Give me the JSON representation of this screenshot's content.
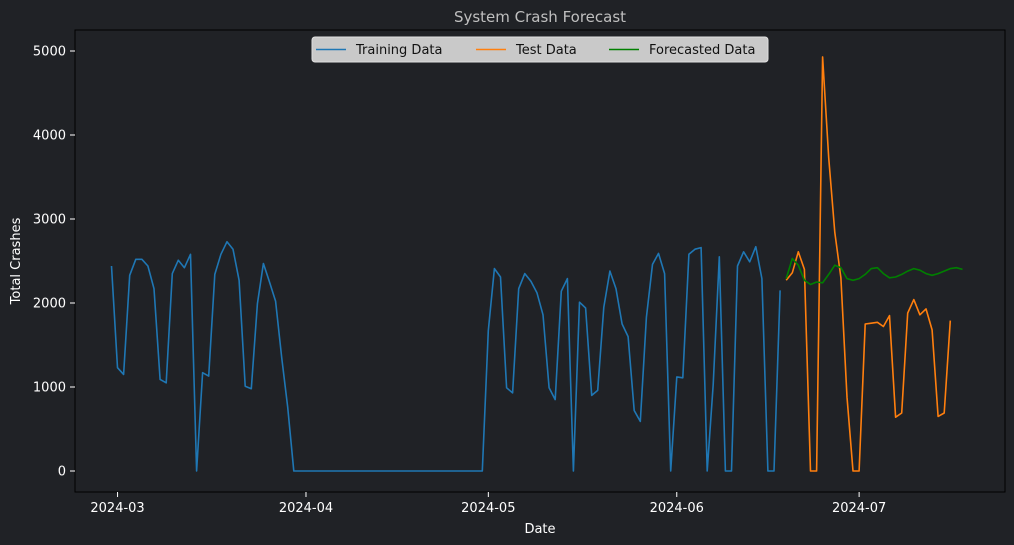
{
  "chart_data": {
    "type": "line",
    "title": "System Crash Forecast",
    "xlabel": "Date",
    "ylabel": "Total Crashes",
    "xlim": [
      "2024-02-23",
      "2024-07-25"
    ],
    "ylim": [
      -250,
      5250
    ],
    "x_ticks": [
      "2024-03",
      "2024-04",
      "2024-05",
      "2024-06",
      "2024-07"
    ],
    "y_ticks": [
      0,
      1000,
      2000,
      3000,
      4000,
      5000
    ],
    "grid": false,
    "legend_position": "top-center",
    "colors": {
      "background": "#202226",
      "axes": "#000000",
      "legend_bg": "#c9c9c9"
    },
    "series": [
      {
        "name": "Training Data",
        "color": "#1f77b4",
        "points": [
          [
            "2024-02-29",
            2440
          ],
          [
            "2024-03-01",
            1230
          ],
          [
            "2024-03-02",
            1150
          ],
          [
            "2024-03-03",
            2330
          ],
          [
            "2024-03-04",
            2520
          ],
          [
            "2024-03-05",
            2520
          ],
          [
            "2024-03-06",
            2440
          ],
          [
            "2024-03-07",
            2170
          ],
          [
            "2024-03-08",
            1090
          ],
          [
            "2024-03-09",
            1050
          ],
          [
            "2024-03-10",
            2350
          ],
          [
            "2024-03-11",
            2510
          ],
          [
            "2024-03-12",
            2420
          ],
          [
            "2024-03-13",
            2580
          ],
          [
            "2024-03-14",
            0
          ],
          [
            "2024-03-15",
            1170
          ],
          [
            "2024-03-16",
            1130
          ],
          [
            "2024-03-17",
            2340
          ],
          [
            "2024-03-18",
            2580
          ],
          [
            "2024-03-19",
            2730
          ],
          [
            "2024-03-20",
            2640
          ],
          [
            "2024-03-21",
            2270
          ],
          [
            "2024-03-22",
            1010
          ],
          [
            "2024-03-23",
            980
          ],
          [
            "2024-03-24",
            1990
          ],
          [
            "2024-03-25",
            2470
          ],
          [
            "2024-03-26",
            2250
          ],
          [
            "2024-03-27",
            2020
          ],
          [
            "2024-03-28",
            1350
          ],
          [
            "2024-03-29",
            760
          ],
          [
            "2024-03-30",
            0
          ],
          [
            "2024-03-31",
            0
          ],
          [
            "2024-04-29",
            0
          ],
          [
            "2024-04-30",
            0
          ],
          [
            "2024-05-01",
            1670
          ],
          [
            "2024-05-02",
            2410
          ],
          [
            "2024-05-03",
            2310
          ],
          [
            "2024-05-04",
            990
          ],
          [
            "2024-05-05",
            930
          ],
          [
            "2024-05-06",
            2170
          ],
          [
            "2024-05-07",
            2350
          ],
          [
            "2024-05-08",
            2260
          ],
          [
            "2024-05-09",
            2120
          ],
          [
            "2024-05-10",
            1860
          ],
          [
            "2024-05-11",
            990
          ],
          [
            "2024-05-12",
            850
          ],
          [
            "2024-05-13",
            2140
          ],
          [
            "2024-05-14",
            2290
          ],
          [
            "2024-05-15",
            0
          ],
          [
            "2024-05-16",
            2010
          ],
          [
            "2024-05-17",
            1940
          ],
          [
            "2024-05-18",
            900
          ],
          [
            "2024-05-19",
            960
          ],
          [
            "2024-05-20",
            1950
          ],
          [
            "2024-05-21",
            2380
          ],
          [
            "2024-05-22",
            2170
          ],
          [
            "2024-05-23",
            1750
          ],
          [
            "2024-05-24",
            1600
          ],
          [
            "2024-05-25",
            720
          ],
          [
            "2024-05-26",
            590
          ],
          [
            "2024-05-27",
            1830
          ],
          [
            "2024-05-28",
            2460
          ],
          [
            "2024-05-29",
            2590
          ],
          [
            "2024-05-30",
            2350
          ],
          [
            "2024-05-31",
            0
          ],
          [
            "2024-06-01",
            1120
          ],
          [
            "2024-06-02",
            1110
          ],
          [
            "2024-06-03",
            2580
          ],
          [
            "2024-06-04",
            2640
          ],
          [
            "2024-06-05",
            2660
          ],
          [
            "2024-06-06",
            0
          ],
          [
            "2024-06-07",
            1030
          ],
          [
            "2024-06-08",
            2550
          ],
          [
            "2024-06-09",
            0
          ],
          [
            "2024-06-10",
            0
          ],
          [
            "2024-06-11",
            2440
          ],
          [
            "2024-06-12",
            2610
          ],
          [
            "2024-06-13",
            2490
          ],
          [
            "2024-06-14",
            2670
          ],
          [
            "2024-06-15",
            2290
          ],
          [
            "2024-06-16",
            0
          ],
          [
            "2024-06-17",
            0
          ],
          [
            "2024-06-18",
            2150
          ]
        ]
      },
      {
        "name": "Test Data",
        "color": "#ff7f0e",
        "points": [
          [
            "2024-06-19",
            2270
          ],
          [
            "2024-06-20",
            2360
          ],
          [
            "2024-06-21",
            2610
          ],
          [
            "2024-06-22",
            2400
          ],
          [
            "2024-06-23",
            0
          ],
          [
            "2024-06-24",
            0
          ],
          [
            "2024-06-25",
            4930
          ],
          [
            "2024-06-26",
            3730
          ],
          [
            "2024-06-27",
            2840
          ],
          [
            "2024-06-28",
            2300
          ],
          [
            "2024-06-29",
            880
          ],
          [
            "2024-06-30",
            0
          ],
          [
            "2024-07-01",
            0
          ],
          [
            "2024-07-02",
            1750
          ],
          [
            "2024-07-03",
            1760
          ],
          [
            "2024-07-04",
            1770
          ],
          [
            "2024-07-05",
            1720
          ],
          [
            "2024-07-06",
            1850
          ],
          [
            "2024-07-07",
            640
          ],
          [
            "2024-07-08",
            690
          ],
          [
            "2024-07-09",
            1880
          ],
          [
            "2024-07-10",
            2040
          ],
          [
            "2024-07-11",
            1860
          ],
          [
            "2024-07-12",
            1930
          ],
          [
            "2024-07-13",
            1680
          ],
          [
            "2024-07-14",
            650
          ],
          [
            "2024-07-15",
            690
          ],
          [
            "2024-07-16",
            1790
          ]
        ]
      },
      {
        "name": "Forecasted Data",
        "color": "#008000",
        "points": [
          [
            "2024-06-19",
            2290
          ],
          [
            "2024-06-20",
            2530
          ],
          [
            "2024-06-21",
            2450
          ],
          [
            "2024-06-22",
            2270
          ],
          [
            "2024-06-23",
            2220
          ],
          [
            "2024-06-24",
            2250
          ],
          [
            "2024-06-25",
            2240
          ],
          [
            "2024-06-26",
            2340
          ],
          [
            "2024-06-27",
            2450
          ],
          [
            "2024-06-28",
            2420
          ],
          [
            "2024-06-29",
            2290
          ],
          [
            "2024-06-30",
            2270
          ],
          [
            "2024-07-01",
            2290
          ],
          [
            "2024-07-02",
            2340
          ],
          [
            "2024-07-03",
            2410
          ],
          [
            "2024-07-04",
            2420
          ],
          [
            "2024-07-05",
            2350
          ],
          [
            "2024-07-06",
            2300
          ],
          [
            "2024-07-07",
            2310
          ],
          [
            "2024-07-08",
            2340
          ],
          [
            "2024-07-09",
            2380
          ],
          [
            "2024-07-10",
            2410
          ],
          [
            "2024-07-11",
            2390
          ],
          [
            "2024-07-12",
            2350
          ],
          [
            "2024-07-13",
            2330
          ],
          [
            "2024-07-14",
            2350
          ],
          [
            "2024-07-15",
            2380
          ],
          [
            "2024-07-16",
            2410
          ],
          [
            "2024-07-17",
            2420
          ],
          [
            "2024-07-18",
            2400
          ]
        ]
      }
    ]
  }
}
